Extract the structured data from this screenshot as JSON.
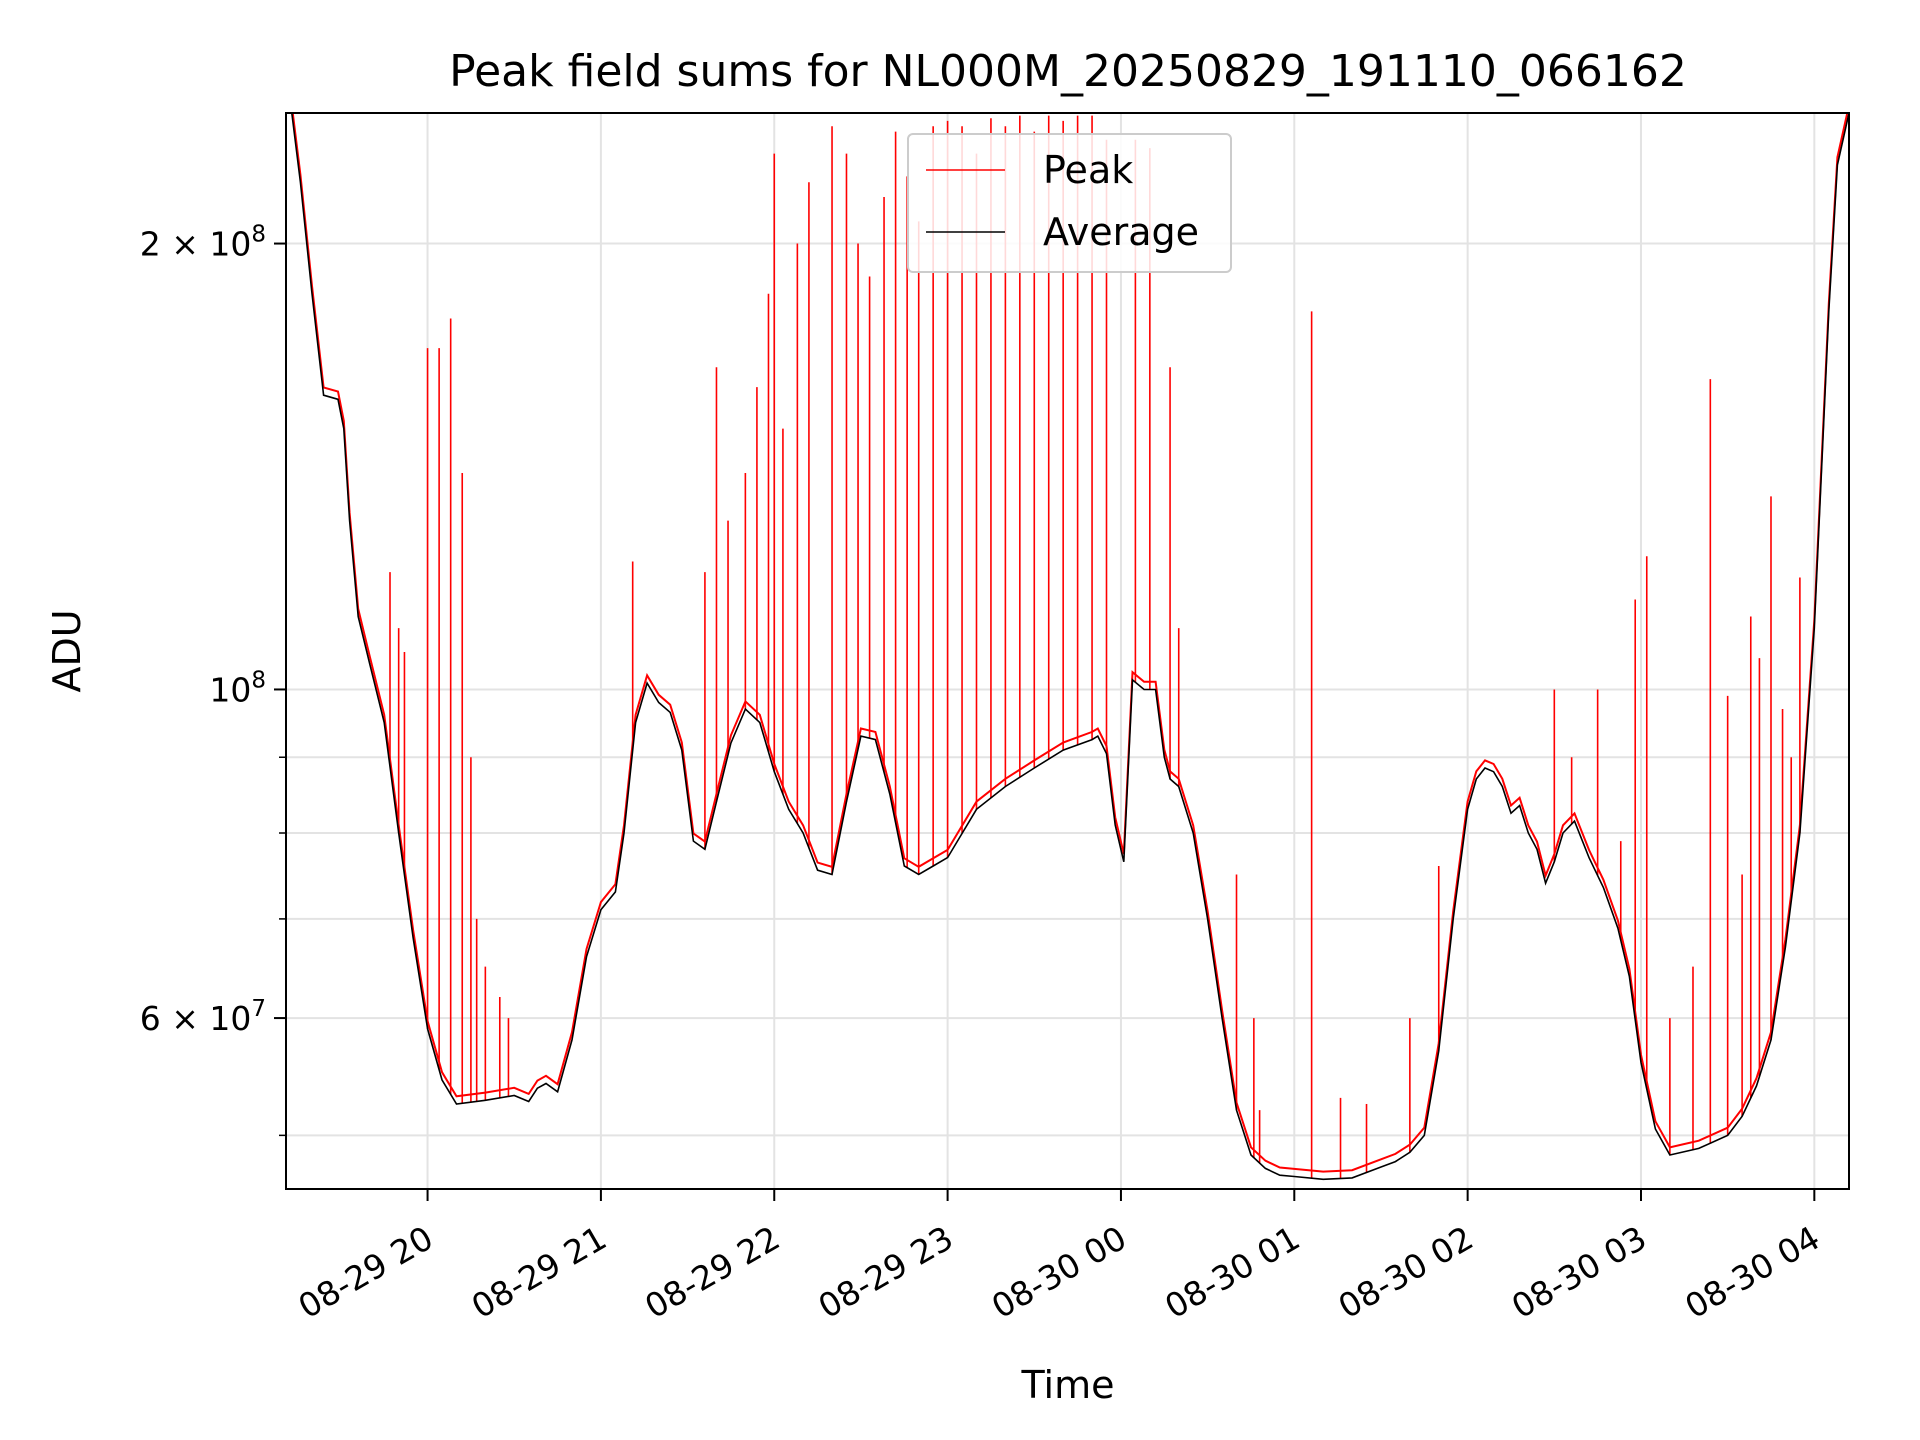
{
  "chart_data": {
    "type": "line",
    "title": "Peak field sums for NL000M_20250829_191110_066162",
    "xlabel": "Time",
    "ylabel": "ADU",
    "yscale": "log",
    "xlim": [
      "2025-08-29 19:11",
      "2025-08-30 04:12"
    ],
    "ylim": [
      46000000,
      245000000
    ],
    "grid": true,
    "legend_position": "top-center",
    "x_ticks": [
      {
        "t": "2025-08-29 20:00",
        "label": "08-29 20"
      },
      {
        "t": "2025-08-29 21:00",
        "label": "08-29 21"
      },
      {
        "t": "2025-08-29 22:00",
        "label": "08-29 22"
      },
      {
        "t": "2025-08-29 23:00",
        "label": "08-29 23"
      },
      {
        "t": "2025-08-30 00:00",
        "label": "08-30 00"
      },
      {
        "t": "2025-08-30 01:00",
        "label": "08-30 01"
      },
      {
        "t": "2025-08-30 02:00",
        "label": "08-30 02"
      },
      {
        "t": "2025-08-30 03:00",
        "label": "08-30 03"
      },
      {
        "t": "2025-08-30 04:00",
        "label": "08-30 04"
      }
    ],
    "y_ticks_major": [
      {
        "v": 60000000,
        "mant": "6",
        "exp": "7"
      },
      {
        "v": 100000000,
        "mant": "",
        "exp": "8"
      },
      {
        "v": 200000000,
        "mant": "2",
        "exp": "8"
      }
    ],
    "y_ticks_minor": [
      50000000,
      70000000,
      80000000,
      90000000
    ],
    "series": [
      {
        "name": "Average",
        "color": "#000000",
        "x": [
          "2025-08-29 19:11",
          "2025-08-29 19:13",
          "2025-08-29 19:16",
          "2025-08-29 19:20",
          "2025-08-29 19:24",
          "2025-08-29 19:29",
          "2025-08-29 19:31",
          "2025-08-29 19:33",
          "2025-08-29 19:36",
          "2025-08-29 19:40",
          "2025-08-29 19:45",
          "2025-08-29 19:50",
          "2025-08-29 19:55",
          "2025-08-29 20:00",
          "2025-08-29 20:05",
          "2025-08-29 20:10",
          "2025-08-29 20:20",
          "2025-08-29 20:30",
          "2025-08-29 20:35",
          "2025-08-29 20:38",
          "2025-08-29 20:41",
          "2025-08-29 20:45",
          "2025-08-29 20:50",
          "2025-08-29 20:55",
          "2025-08-29 21:00",
          "2025-08-29 21:05",
          "2025-08-29 21:08",
          "2025-08-29 21:12",
          "2025-08-29 21:16",
          "2025-08-29 21:20",
          "2025-08-29 21:24",
          "2025-08-29 21:28",
          "2025-08-29 21:32",
          "2025-08-29 21:36",
          "2025-08-29 21:40",
          "2025-08-29 21:45",
          "2025-08-29 21:50",
          "2025-08-29 21:55",
          "2025-08-29 22:00",
          "2025-08-29 22:05",
          "2025-08-29 22:10",
          "2025-08-29 22:15",
          "2025-08-29 22:20",
          "2025-08-29 22:25",
          "2025-08-29 22:30",
          "2025-08-29 22:35",
          "2025-08-29 22:40",
          "2025-08-29 22:45",
          "2025-08-29 22:50",
          "2025-08-29 22:55",
          "2025-08-29 23:00",
          "2025-08-29 23:10",
          "2025-08-29 23:20",
          "2025-08-29 23:30",
          "2025-08-29 23:40",
          "2025-08-29 23:50",
          "2025-08-29 23:52",
          "2025-08-29 23:55",
          "2025-08-29 23:58",
          "2025-08-30 00:01",
          "2025-08-30 00:04",
          "2025-08-30 00:08",
          "2025-08-30 00:12",
          "2025-08-30 00:15",
          "2025-08-30 00:17",
          "2025-08-30 00:20",
          "2025-08-30 00:25",
          "2025-08-30 00:30",
          "2025-08-30 00:35",
          "2025-08-30 00:40",
          "2025-08-30 00:45",
          "2025-08-30 00:50",
          "2025-08-30 00:55",
          "2025-08-30 01:00",
          "2025-08-30 01:10",
          "2025-08-30 01:20",
          "2025-08-30 01:30",
          "2025-08-30 01:35",
          "2025-08-30 01:40",
          "2025-08-30 01:45",
          "2025-08-30 01:50",
          "2025-08-30 01:55",
          "2025-08-30 02:00",
          "2025-08-30 02:03",
          "2025-08-30 02:06",
          "2025-08-30 02:09",
          "2025-08-30 02:12",
          "2025-08-30 02:15",
          "2025-08-30 02:18",
          "2025-08-30 02:21",
          "2025-08-30 02:24",
          "2025-08-30 02:27",
          "2025-08-30 02:30",
          "2025-08-30 02:33",
          "2025-08-30 02:37",
          "2025-08-30 02:42",
          "2025-08-30 02:47",
          "2025-08-30 02:52",
          "2025-08-30 02:56",
          "2025-08-30 03:00",
          "2025-08-30 03:05",
          "2025-08-30 03:10",
          "2025-08-30 03:20",
          "2025-08-30 03:30",
          "2025-08-30 03:35",
          "2025-08-30 03:40",
          "2025-08-30 03:45",
          "2025-08-30 03:50",
          "2025-08-30 03:55",
          "2025-08-30 04:00",
          "2025-08-30 04:05",
          "2025-08-30 04:08",
          "2025-08-30 04:12"
        ],
        "values": [
          245000000,
          245000000,
          220000000,
          185000000,
          158000000,
          157000000,
          150000000,
          130000000,
          112000000,
          104000000,
          95000000,
          80000000,
          68000000,
          59000000,
          54500000,
          52500000,
          52800000,
          53200000,
          52700000,
          53800000,
          54200000,
          53500000,
          58000000,
          66000000,
          71000000,
          73000000,
          80000000,
          95000000,
          101000000,
          98000000,
          96500000,
          91000000,
          79000000,
          78000000,
          84000000,
          92000000,
          97000000,
          95000000,
          88000000,
          83000000,
          80000000,
          75500000,
          75000000,
          84000000,
          93000000,
          92500000,
          85000000,
          76000000,
          75000000,
          76000000,
          77000000,
          83000000,
          86000000,
          88500000,
          91000000,
          92500000,
          93000000,
          90500000,
          81000000,
          76500000,
          101500000,
          100000000,
          100000000,
          90000000,
          87000000,
          86000000,
          80000000,
          70000000,
          60000000,
          52000000,
          48500000,
          47500000,
          47000000,
          46900000,
          46700000,
          46800000,
          47600000,
          48000000,
          48700000,
          50000000,
          57000000,
          70000000,
          83000000,
          87000000,
          88500000,
          88000000,
          86000000,
          82500000,
          83500000,
          80000000,
          78000000,
          74000000,
          76500000,
          80000000,
          81500000,
          77000000,
          73500000,
          69000000,
          64000000,
          56000000,
          50500000,
          48500000,
          49000000,
          50000000,
          51500000,
          54000000,
          58000000,
          67000000,
          80000000,
          110000000,
          180000000,
          226000000,
          245000000
        ]
      },
      {
        "name": "Peak",
        "color": "#ff0000",
        "peaks_x": [
          "2025-08-29 19:47",
          "2025-08-29 19:50",
          "2025-08-29 19:52",
          "2025-08-29 20:00",
          "2025-08-29 20:04",
          "2025-08-29 20:08",
          "2025-08-29 20:12",
          "2025-08-29 20:15",
          "2025-08-29 20:17",
          "2025-08-29 20:20",
          "2025-08-29 20:25",
          "2025-08-29 20:28",
          "2025-08-29 20:52",
          "2025-08-29 21:11",
          "2025-08-29 21:36",
          "2025-08-29 21:40",
          "2025-08-29 21:44",
          "2025-08-29 21:50",
          "2025-08-29 21:54",
          "2025-08-29 21:58",
          "2025-08-29 22:00",
          "2025-08-29 22:03",
          "2025-08-29 22:08",
          "2025-08-29 22:12",
          "2025-08-29 22:20",
          "2025-08-29 22:25",
          "2025-08-29 22:29",
          "2025-08-29 22:33",
          "2025-08-29 22:38",
          "2025-08-29 22:42",
          "2025-08-29 22:46",
          "2025-08-29 22:50",
          "2025-08-29 22:55",
          "2025-08-29 23:00",
          "2025-08-29 23:05",
          "2025-08-29 23:10",
          "2025-08-29 23:15",
          "2025-08-29 23:20",
          "2025-08-29 23:25",
          "2025-08-29 23:30",
          "2025-08-29 23:35",
          "2025-08-29 23:40",
          "2025-08-29 23:45",
          "2025-08-29 23:50",
          "2025-08-29 23:55",
          "2025-08-30 00:05",
          "2025-08-30 00:10",
          "2025-08-30 00:17",
          "2025-08-30 00:20",
          "2025-08-30 00:40",
          "2025-08-30 00:46",
          "2025-08-30 00:48",
          "2025-08-30 01:06",
          "2025-08-30 01:16",
          "2025-08-30 01:25",
          "2025-08-30 01:40",
          "2025-08-30 01:50",
          "2025-08-30 02:30",
          "2025-08-30 02:36",
          "2025-08-30 02:45",
          "2025-08-30 02:53",
          "2025-08-30 02:58",
          "2025-08-30 03:02",
          "2025-08-30 03:10",
          "2025-08-30 03:18",
          "2025-08-30 03:24",
          "2025-08-30 03:30",
          "2025-08-30 03:35",
          "2025-08-30 03:38",
          "2025-08-30 03:41",
          "2025-08-30 03:45",
          "2025-08-30 03:49",
          "2025-08-30 03:52",
          "2025-08-30 03:55"
        ],
        "peaks_values": [
          120000000,
          110000000,
          106000000,
          170000000,
          170000000,
          178000000,
          140000000,
          90000000,
          70000000,
          65000000,
          62000000,
          60000000,
          62000000,
          122000000,
          120000000,
          165000000,
          130000000,
          140000000,
          160000000,
          185000000,
          230000000,
          150000000,
          200000000,
          220000000,
          240000000,
          230000000,
          200000000,
          190000000,
          215000000,
          238000000,
          222000000,
          207000000,
          240000000,
          242000000,
          240000000,
          230000000,
          243000000,
          240000000,
          244000000,
          238000000,
          244000000,
          242000000,
          244000000,
          244000000,
          235000000,
          235000000,
          232000000,
          165000000,
          110000000,
          75000000,
          60000000,
          52000000,
          180000000,
          53000000,
          52500000,
          60000000,
          76000000,
          100000000,
          90000000,
          100000000,
          79000000,
          115000000,
          123000000,
          60000000,
          65000000,
          162000000,
          99000000,
          75000000,
          112000000,
          105000000,
          135000000,
          97000000,
          90000000,
          119000000
        ]
      }
    ]
  }
}
